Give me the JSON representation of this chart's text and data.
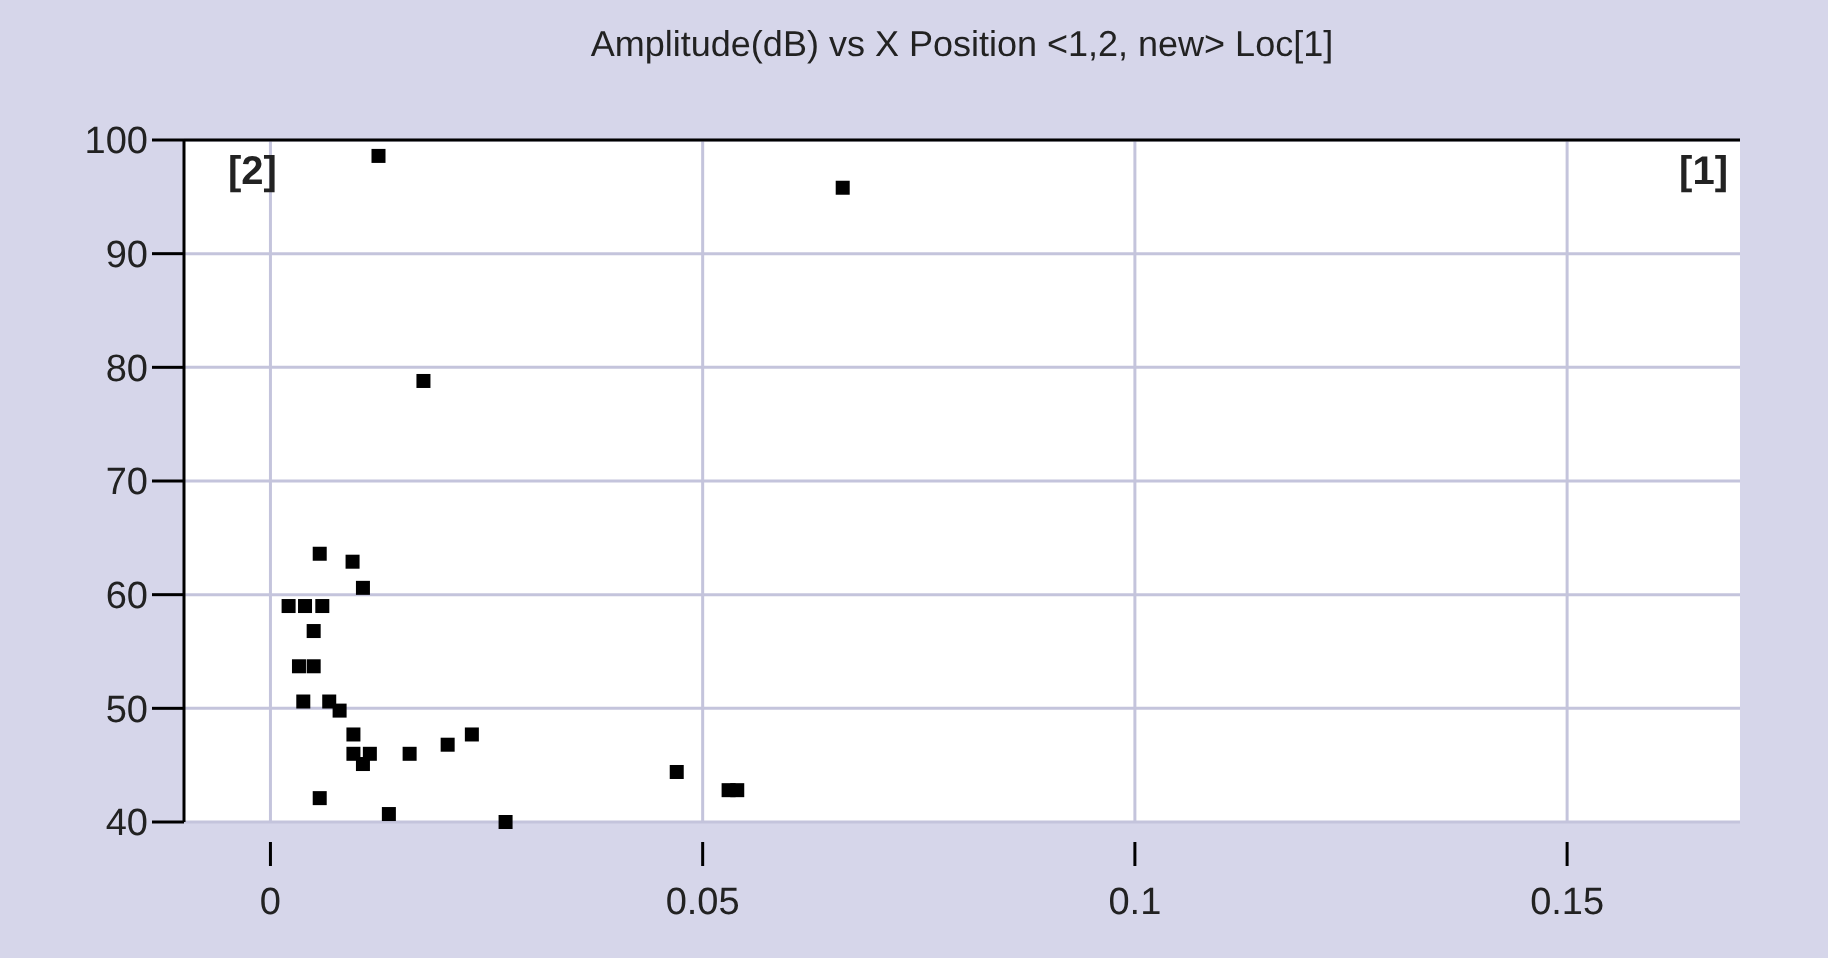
{
  "chart_data": {
    "type": "scatter",
    "title": "Amplitude(dB) vs X Position <1,2, new> Loc[1]",
    "annotations": [
      "[2]",
      "[1]"
    ],
    "xlim": [
      -0.01,
      0.17
    ],
    "xticks": [
      0,
      0.05,
      0.1,
      0.15
    ],
    "ylim": [
      40,
      100
    ],
    "yticks": [
      40,
      50,
      60,
      70,
      80,
      90,
      100
    ],
    "grid": true,
    "marker": "square",
    "series": [
      {
        "color": "#000000",
        "x": [
          0.0125,
          0.0177,
          0.0057,
          0.0095,
          0.0107,
          0.0021,
          0.004,
          0.006,
          0.005,
          0.0033,
          0.005,
          0.0038,
          0.0068,
          0.008,
          0.0096,
          0.0096,
          0.0115,
          0.0107,
          0.0161,
          0.0205,
          0.0233,
          0.0057,
          0.0137,
          0.0272,
          0.0662,
          0.047,
          0.053,
          0.054
        ],
        "values": [
          98.6,
          78.8,
          63.6,
          62.9,
          60.6,
          59,
          59,
          59,
          56.8,
          53.7,
          53.7,
          50.6,
          50.6,
          49.8,
          47.7,
          46,
          46,
          45.1,
          46,
          46.8,
          47.7,
          42.1,
          40.7,
          40,
          95.8,
          44.4,
          42.8,
          42.8
        ]
      }
    ]
  }
}
